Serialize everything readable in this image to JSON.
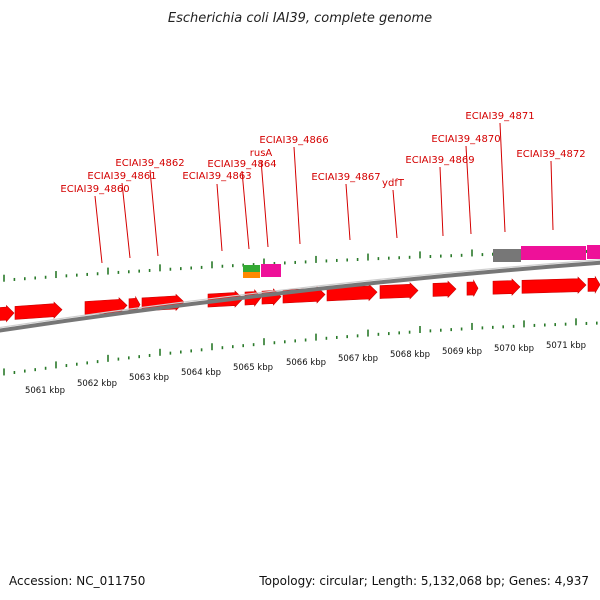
{
  "title": "Escherichia coli IAI39, complete genome",
  "footer": {
    "accession": "Accession: NC_011750",
    "summary": "Topology: circular; Length: 5,132,068 bp; Genes: 4,937"
  },
  "colors": {
    "gene": "#ff0000",
    "gene_label": "#d40000",
    "tick": "#2a7a2a",
    "backbone": "#888888",
    "feature_pink": "#ee1199",
    "feature_grey": "#777777",
    "feature_green": "#33aa33",
    "feature_orange": "#ff8800"
  },
  "kbp_labels": [
    "5061 kbp",
    "5062 kbp",
    "5063 kbp",
    "5064 kbp",
    "5065 kbp",
    "5066 kbp",
    "5067 kbp",
    "5068 kbp",
    "5069 kbp",
    "5070 kbp",
    "5071 kbp"
  ],
  "gene_labels": [
    "ECIAI39_4860",
    "ECIAI39_4861",
    "ECIAI39_4862",
    "ECIAI39_4863",
    "ECIAI39_4864",
    "rusA",
    "ECIAI39_4866",
    "ECIAI39_4867",
    "ydfT",
    "ECIAI39_4869",
    "ECIAI39_4870",
    "ECIAI39_4871",
    "ECIAI39_4872"
  ]
}
